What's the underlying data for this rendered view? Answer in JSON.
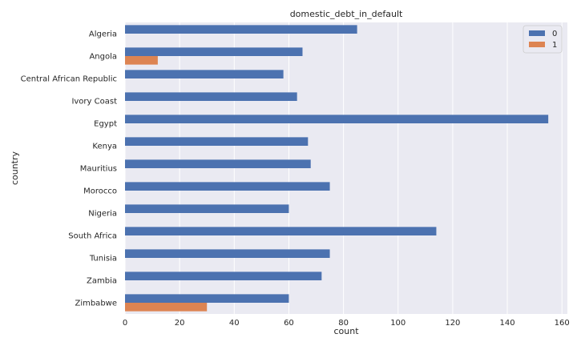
{
  "chart_data": {
    "type": "bar",
    "orientation": "horizontal",
    "title": "domestic_debt_in_default",
    "xlabel": "count",
    "ylabel": "country",
    "categories": [
      "Algeria",
      "Angola",
      "Central African Republic",
      "Ivory Coast",
      "Egypt",
      "Kenya",
      "Mauritius",
      "Morocco",
      "Nigeria",
      "South Africa",
      "Tunisia",
      "Zambia",
      "Zimbabwe"
    ],
    "series": [
      {
        "name": "0",
        "color": "#4c72b0",
        "values": [
          85,
          65,
          58,
          63,
          155,
          67,
          68,
          75,
          60,
          114,
          75,
          72,
          60
        ]
      },
      {
        "name": "1",
        "color": "#dd8452",
        "values": [
          0,
          12,
          0,
          0,
          0,
          0,
          0,
          0,
          0,
          0,
          0,
          0,
          30
        ]
      }
    ],
    "xlim": [
      0,
      162
    ],
    "xticks": [
      0,
      20,
      40,
      60,
      80,
      100,
      120,
      140,
      160
    ],
    "grid": true,
    "legend_position": "top-right",
    "background": "#eaeaf2"
  }
}
